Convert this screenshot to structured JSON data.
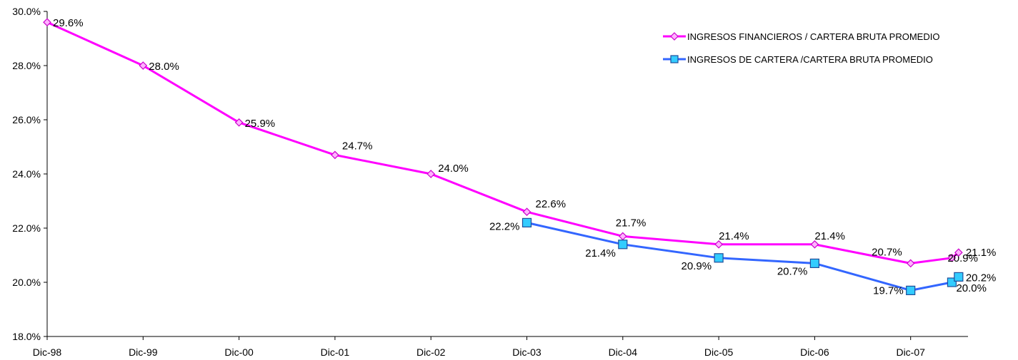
{
  "chart_data": {
    "type": "line",
    "title": "",
    "xlabel": "",
    "ylabel": "",
    "categories": [
      "Dic-98",
      "Dic-99",
      "Dic-00",
      "Dic-01",
      "Dic-02",
      "Dic-03",
      "Dic-04",
      "Dic-05",
      "Dic-06",
      "Dic-07"
    ],
    "ylim": [
      18.0,
      30.0
    ],
    "yticks": [
      "18.0%",
      "20.0%",
      "22.0%",
      "24.0%",
      "26.0%",
      "28.0%",
      "30.0%"
    ],
    "legend_position": "top-right",
    "grid": false,
    "series": [
      {
        "name": "INGRESOS FINANCIEROS / CARTERA BRUTA PROMEDIO",
        "color": "#FF00FF",
        "marker": "diamond",
        "x": [
          0,
          1,
          2,
          3,
          4,
          5,
          6,
          7,
          8,
          9,
          9.43,
          9.5
        ],
        "values": [
          29.6,
          28.0,
          25.9,
          24.7,
          24.0,
          22.6,
          21.7,
          21.4,
          21.4,
          20.7,
          20.9,
          21.1
        ],
        "labels": [
          "29.6%",
          "28.0%",
          "25.9%",
          "24.7%",
          "24.0%",
          "22.6%",
          "21.7%",
          "21.4%",
          "21.4%",
          "20.7%",
          "20.9%",
          "21.1%"
        ]
      },
      {
        "name": "INGRESOS DE CARTERA /CARTERA BRUTA PROMEDIO",
        "color": "#3366FF",
        "marker": "square",
        "x": [
          5,
          6,
          7,
          8,
          9,
          9.43,
          9.5
        ],
        "values": [
          22.2,
          21.4,
          20.9,
          20.7,
          19.7,
          20.0,
          20.2
        ],
        "labels": [
          "22.2%",
          "21.4%",
          "20.9%",
          "20.7%",
          "19.7%",
          "20.0%",
          "20.2%"
        ]
      }
    ]
  }
}
